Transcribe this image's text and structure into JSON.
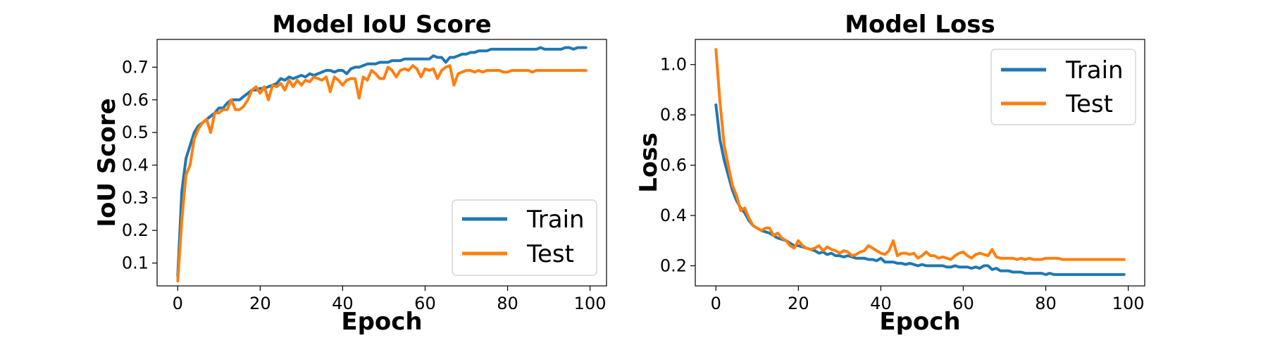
{
  "colors": {
    "train": "#1f77b4",
    "test": "#ff7f0e"
  },
  "chart_data": [
    {
      "type": "line",
      "title": "Model IoU Score",
      "xlabel": "Epoch",
      "ylabel": "IoU Score",
      "xlim": [
        -5,
        104
      ],
      "ylim": [
        0.03,
        0.785
      ],
      "xticks": [
        0,
        20,
        40,
        60,
        80,
        100
      ],
      "yticks": [
        0.1,
        0.2,
        0.3,
        0.4,
        0.5,
        0.6,
        0.7
      ],
      "grid": false,
      "legend_position": "lower-right",
      "series": [
        {
          "name": "Train",
          "values": [
            0.06,
            0.32,
            0.42,
            0.46,
            0.5,
            0.52,
            0.53,
            0.54,
            0.55,
            0.56,
            0.575,
            0.575,
            0.59,
            0.6,
            0.6,
            0.6,
            0.61,
            0.62,
            0.63,
            0.63,
            0.635,
            0.635,
            0.64,
            0.645,
            0.65,
            0.665,
            0.66,
            0.67,
            0.665,
            0.67,
            0.675,
            0.67,
            0.68,
            0.675,
            0.68,
            0.685,
            0.69,
            0.69,
            0.685,
            0.69,
            0.69,
            0.68,
            0.695,
            0.7,
            0.7,
            0.705,
            0.71,
            0.71,
            0.71,
            0.715,
            0.715,
            0.715,
            0.72,
            0.72,
            0.72,
            0.725,
            0.725,
            0.725,
            0.725,
            0.725,
            0.725,
            0.725,
            0.735,
            0.73,
            0.73,
            0.715,
            0.73,
            0.73,
            0.735,
            0.74,
            0.74,
            0.745,
            0.745,
            0.75,
            0.75,
            0.75,
            0.755,
            0.755,
            0.755,
            0.755,
            0.755,
            0.755,
            0.755,
            0.755,
            0.755,
            0.755,
            0.755,
            0.755,
            0.76,
            0.755,
            0.755,
            0.755,
            0.755,
            0.755,
            0.76,
            0.76,
            0.755,
            0.76,
            0.76,
            0.76
          ]
        },
        {
          "name": "Test",
          "values": [
            0.045,
            0.23,
            0.37,
            0.4,
            0.48,
            0.51,
            0.53,
            0.54,
            0.5,
            0.56,
            0.56,
            0.57,
            0.57,
            0.6,
            0.57,
            0.57,
            0.58,
            0.6,
            0.63,
            0.64,
            0.62,
            0.64,
            0.6,
            0.645,
            0.64,
            0.65,
            0.63,
            0.66,
            0.64,
            0.66,
            0.645,
            0.66,
            0.655,
            0.67,
            0.665,
            0.66,
            0.67,
            0.625,
            0.67,
            0.66,
            0.645,
            0.66,
            0.665,
            0.665,
            0.605,
            0.67,
            0.66,
            0.69,
            0.68,
            0.665,
            0.665,
            0.7,
            0.69,
            0.67,
            0.69,
            0.695,
            0.69,
            0.705,
            0.695,
            0.67,
            0.695,
            0.69,
            0.695,
            0.665,
            0.69,
            0.7,
            0.705,
            0.645,
            0.68,
            0.685,
            0.69,
            0.69,
            0.685,
            0.69,
            0.685,
            0.69,
            0.69,
            0.69,
            0.69,
            0.685,
            0.685,
            0.69,
            0.69,
            0.69,
            0.69,
            0.69,
            0.685,
            0.69,
            0.69,
            0.69,
            0.69,
            0.69,
            0.69,
            0.69,
            0.69,
            0.69,
            0.69,
            0.69,
            0.69,
            0.69
          ]
        }
      ]
    },
    {
      "type": "line",
      "title": "Model Loss",
      "xlabel": "Epoch",
      "ylabel": "Loss",
      "xlim": [
        -5,
        104
      ],
      "ylim": [
        0.12,
        1.1
      ],
      "xticks": [
        0,
        20,
        40,
        60,
        80,
        100
      ],
      "yticks": [
        0.2,
        0.4,
        0.6,
        0.8,
        1.0
      ],
      "ytick_format": 1,
      "grid": false,
      "legend_position": "upper-right",
      "series": [
        {
          "name": "Train",
          "values": [
            0.84,
            0.7,
            0.62,
            0.56,
            0.5,
            0.46,
            0.43,
            0.41,
            0.38,
            0.36,
            0.35,
            0.34,
            0.335,
            0.33,
            0.32,
            0.31,
            0.305,
            0.3,
            0.29,
            0.28,
            0.28,
            0.275,
            0.27,
            0.265,
            0.26,
            0.25,
            0.255,
            0.245,
            0.25,
            0.24,
            0.24,
            0.235,
            0.24,
            0.235,
            0.23,
            0.23,
            0.23,
            0.225,
            0.225,
            0.22,
            0.23,
            0.215,
            0.215,
            0.215,
            0.21,
            0.21,
            0.205,
            0.21,
            0.205,
            0.2,
            0.205,
            0.2,
            0.2,
            0.2,
            0.2,
            0.2,
            0.195,
            0.195,
            0.2,
            0.195,
            0.195,
            0.195,
            0.19,
            0.195,
            0.19,
            0.2,
            0.2,
            0.185,
            0.19,
            0.18,
            0.18,
            0.18,
            0.175,
            0.175,
            0.175,
            0.17,
            0.17,
            0.17,
            0.17,
            0.17,
            0.165,
            0.17,
            0.165,
            0.165,
            0.165,
            0.165,
            0.165,
            0.165,
            0.165,
            0.165,
            0.165,
            0.165,
            0.165,
            0.165,
            0.165,
            0.165,
            0.165,
            0.165,
            0.165,
            0.165
          ]
        },
        {
          "name": "Test",
          "values": [
            1.06,
            0.85,
            0.68,
            0.6,
            0.52,
            0.48,
            0.42,
            0.43,
            0.39,
            0.36,
            0.35,
            0.34,
            0.35,
            0.35,
            0.32,
            0.33,
            0.31,
            0.3,
            0.28,
            0.27,
            0.3,
            0.28,
            0.27,
            0.265,
            0.27,
            0.28,
            0.26,
            0.275,
            0.265,
            0.26,
            0.25,
            0.26,
            0.255,
            0.24,
            0.245,
            0.255,
            0.26,
            0.28,
            0.27,
            0.26,
            0.25,
            0.245,
            0.26,
            0.3,
            0.24,
            0.25,
            0.25,
            0.245,
            0.25,
            0.23,
            0.24,
            0.255,
            0.24,
            0.24,
            0.23,
            0.235,
            0.23,
            0.225,
            0.24,
            0.25,
            0.255,
            0.24,
            0.23,
            0.245,
            0.25,
            0.245,
            0.24,
            0.265,
            0.235,
            0.23,
            0.23,
            0.23,
            0.23,
            0.225,
            0.23,
            0.225,
            0.23,
            0.225,
            0.225,
            0.225,
            0.23,
            0.23,
            0.23,
            0.23,
            0.225,
            0.225,
            0.225,
            0.225,
            0.225,
            0.225,
            0.225,
            0.225,
            0.225,
            0.225,
            0.225,
            0.225,
            0.225,
            0.225,
            0.225,
            0.225
          ]
        }
      ]
    }
  ]
}
